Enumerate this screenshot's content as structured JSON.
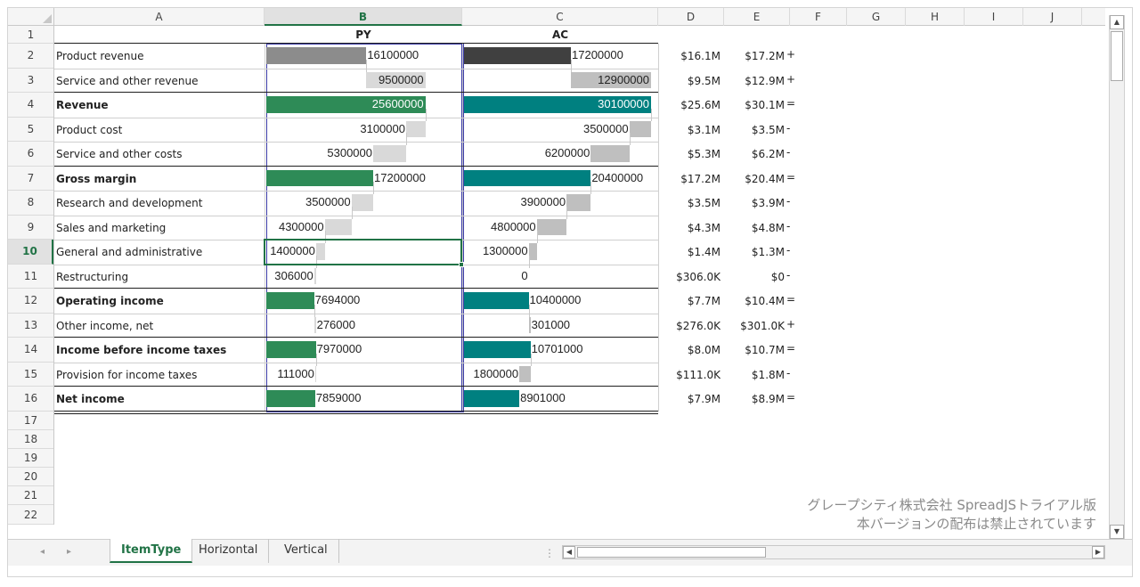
{
  "columns": [
    "A",
    "B",
    "C",
    "D",
    "E",
    "F",
    "G",
    "H",
    "I",
    "J"
  ],
  "selected_column": "B",
  "active_row": "10",
  "header_row": {
    "b_label": "PY",
    "c_label": "AC"
  },
  "rows": [
    {
      "num": "1"
    },
    {
      "num": "2",
      "label": "Product revenue",
      "bold": false,
      "py": 16100000,
      "ac": 17200000,
      "py_text": "16100000",
      "ac_text": "17200000",
      "d": "$16.1M",
      "e": "$17.2M",
      "sign": "+",
      "type": "product"
    },
    {
      "num": "3",
      "label": "Service and other revenue",
      "bold": false,
      "py": 9500000,
      "ac": 12900000,
      "py_text": "9500000",
      "ac_text": "12900000",
      "d": "$9.5M",
      "e": "$12.9M",
      "sign": "+",
      "type": "service"
    },
    {
      "num": "4",
      "label": "Revenue",
      "bold": true,
      "py": 25600000,
      "ac": 30100000,
      "py_text": "25600000",
      "ac_text": "30100000",
      "d": "$25.6M",
      "e": "$30.1M",
      "sign": "=",
      "type": "total"
    },
    {
      "num": "5",
      "label": "Product cost",
      "bold": false,
      "py": 3100000,
      "ac": 3500000,
      "py_text": "3100000",
      "ac_text": "3500000",
      "d": "$3.1M",
      "e": "$3.5M",
      "sign": "-",
      "type": "cost"
    },
    {
      "num": "6",
      "label": "Service and other costs",
      "bold": false,
      "py": 5300000,
      "ac": 6200000,
      "py_text": "5300000",
      "ac_text": "6200000",
      "d": "$5.3M",
      "e": "$6.2M",
      "sign": "-",
      "type": "cost"
    },
    {
      "num": "7",
      "label": "Gross margin",
      "bold": true,
      "py": 17200000,
      "ac": 20400000,
      "py_text": "17200000",
      "ac_text": "20400000",
      "d": "$17.2M",
      "e": "$20.4M",
      "sign": "=",
      "type": "total"
    },
    {
      "num": "8",
      "label": "Research and development",
      "bold": false,
      "py": 3500000,
      "ac": 3900000,
      "py_text": "3500000",
      "ac_text": "3900000",
      "d": "$3.5M",
      "e": "$3.9M",
      "sign": "-",
      "type": "cost"
    },
    {
      "num": "9",
      "label": "Sales and marketing",
      "bold": false,
      "py": 4300000,
      "ac": 4800000,
      "py_text": "4300000",
      "ac_text": "4800000",
      "d": "$4.3M",
      "e": "$4.8M",
      "sign": "-",
      "type": "cost"
    },
    {
      "num": "10",
      "label": "General and administrative",
      "bold": false,
      "py": 1400000,
      "ac": 1300000,
      "py_text": "1400000",
      "ac_text": "1300000",
      "d": "$1.4M",
      "e": "$1.3M",
      "sign": "-",
      "type": "cost"
    },
    {
      "num": "11",
      "label": "Restructuring",
      "bold": false,
      "py": 306000,
      "ac": 0,
      "py_text": "306000",
      "ac_text": "0",
      "d": "$306.0K",
      "e": "$0",
      "sign": "-",
      "type": "cost"
    },
    {
      "num": "12",
      "label": "Operating income",
      "bold": true,
      "py": 7694000,
      "ac": 10400000,
      "py_text": "7694000",
      "ac_text": "10400000",
      "d": "$7.7M",
      "e": "$10.4M",
      "sign": "=",
      "type": "total"
    },
    {
      "num": "13",
      "label": "Other income, net",
      "bold": false,
      "py": 276000,
      "ac": 301000,
      "py_text": "276000",
      "ac_text": "301000",
      "d": "$276.0K",
      "e": "$301.0K",
      "sign": "+",
      "type": "add"
    },
    {
      "num": "14",
      "label": "Income before income taxes",
      "bold": true,
      "py": 7970000,
      "ac": 10701000,
      "py_text": "7970000",
      "ac_text": "10701000",
      "d": "$8.0M",
      "e": "$10.7M",
      "sign": "=",
      "type": "total"
    },
    {
      "num": "15",
      "label": "Provision for income taxes",
      "bold": false,
      "py": 111000,
      "ac": 1800000,
      "py_text": "111000",
      "ac_text": "1800000",
      "d": "$111.0K",
      "e": "$1.8M",
      "sign": "-",
      "type": "cost"
    },
    {
      "num": "16",
      "label": "Net income",
      "bold": true,
      "py": 7859000,
      "ac": 8901000,
      "py_text": "7859000",
      "ac_text": "8901000",
      "d": "$7.9M",
      "e": "$8.9M",
      "sign": "=",
      "type": "total"
    },
    {
      "num": "17"
    },
    {
      "num": "18"
    },
    {
      "num": "19"
    },
    {
      "num": "20"
    },
    {
      "num": "21"
    },
    {
      "num": "22"
    }
  ],
  "colors": {
    "py_total": "#2e8b57",
    "ac_total": "#008080",
    "py_product": "#8c8c8c",
    "ac_product": "#404040",
    "py_cost": "#d9d9d9",
    "ac_cost": "#bfbfbf",
    "py_service": "#d9d9d9",
    "ac_service": "#bfbfbf"
  },
  "watermark": {
    "line1": "グレープシティ株式会社 SpreadJSトライアル版",
    "line2": "本バージョンの配布は禁止されています"
  },
  "sheet_tabs": [
    {
      "label": "ItemType",
      "active": true
    },
    {
      "label": "Horizontal",
      "active": false
    },
    {
      "label": "Vertical",
      "active": false
    }
  ],
  "icons": {
    "scroll_up": "▲",
    "scroll_down": "▼",
    "scroll_left": "◀",
    "scroll_right": "▶",
    "tab_prev": "◂",
    "tab_next": "▸",
    "splitter": "⋮"
  }
}
